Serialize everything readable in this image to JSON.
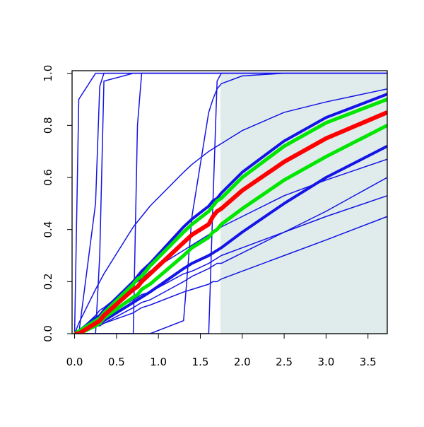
{
  "chart_data": {
    "type": "line",
    "xlim": [
      -0.03,
      3.73
    ],
    "ylim": [
      0,
      1.01
    ],
    "xticks": [
      {
        "value": 0,
        "label": "0.0"
      },
      0.5,
      {
        "value": 1,
        "label": "1.0"
      },
      1.5,
      {
        "value": 2,
        "label": "2.0"
      },
      2.5,
      {
        "value": 3,
        "label": "3.0"
      },
      3.5
    ],
    "yticks": [
      {
        "value": 0,
        "label": "0.0"
      },
      0.2,
      0.4,
      0.6,
      0.8,
      {
        "value": 1,
        "label": "1.0"
      }
    ],
    "shaded_region": {
      "x": [
        1.74,
        3.73
      ],
      "y": [
        0,
        1
      ],
      "color": "#e0eceb"
    },
    "x": [
      0,
      0.05,
      0.25,
      0.3,
      0.35,
      0.7,
      0.75,
      0.8,
      0.9,
      1.3,
      1.4,
      1.6,
      1.65,
      1.7,
      1.75,
      2.0,
      2.5,
      3.0,
      3.73
    ],
    "series": [
      {
        "color": "#1414e6",
        "width": 1.5,
        "values": [
          0,
          0.9,
          1,
          1,
          1,
          1,
          1,
          1,
          1,
          1,
          1,
          1,
          1,
          1,
          1,
          1,
          1,
          1,
          1
        ]
      },
      {
        "color": "#1414e6",
        "width": 1.5,
        "values": [
          0,
          0,
          0.5,
          0.95,
          1,
          1,
          1,
          1,
          1,
          1,
          1,
          1,
          1,
          1,
          1,
          1,
          1,
          1,
          1
        ]
      },
      {
        "color": "#1414e6",
        "width": 1.5,
        "values": [
          0,
          0,
          0,
          0.3,
          0.97,
          1,
          1,
          1,
          1,
          1,
          1,
          1,
          1,
          1,
          1,
          1,
          1,
          1,
          1
        ]
      },
      {
        "color": "#1414e6",
        "width": 1.5,
        "values": [
          0,
          0,
          0,
          0,
          0,
          0,
          0.8,
          1,
          1,
          1,
          1,
          1,
          1,
          1,
          1,
          1,
          1,
          1,
          1
        ]
      },
      {
        "color": "#1414e6",
        "width": 1.5,
        "values": [
          0,
          0,
          0,
          0,
          0,
          0,
          0,
          0,
          0,
          0.05,
          0.45,
          0.85,
          0.9,
          0.94,
          0.96,
          0.99,
          1,
          1,
          1
        ]
      },
      {
        "color": "#1414e6",
        "width": 1.5,
        "values": [
          0,
          0,
          0,
          0,
          0,
          0,
          0,
          0,
          0,
          0,
          0,
          0,
          0.5,
          0.97,
          1,
          1,
          1,
          1,
          1
        ]
      },
      {
        "color": "#1414e6",
        "width": 1.5,
        "values": [
          0,
          0.04,
          0.17,
          0.2,
          0.23,
          0.41,
          0.43,
          0.45,
          0.49,
          0.62,
          0.65,
          0.7,
          0.71,
          0.72,
          0.73,
          0.78,
          0.85,
          0.89,
          0.94
        ]
      },
      {
        "color": "#1414e6",
        "width": 4,
        "values": [
          0,
          0.01,
          0.06,
          0.07,
          0.09,
          0.2,
          0.22,
          0.24,
          0.27,
          0.41,
          0.44,
          0.49,
          0.51,
          0.52,
          0.54,
          0.62,
          0.74,
          0.83,
          0.92
        ]
      },
      {
        "color": "#1414e6",
        "width": 4,
        "values": [
          0,
          0,
          0.03,
          0.04,
          0.05,
          0.12,
          0.13,
          0.14,
          0.16,
          0.25,
          0.27,
          0.3,
          0.31,
          0.32,
          0.33,
          0.39,
          0.5,
          0.6,
          0.72
        ]
      },
      {
        "color": "#1414e6",
        "width": 1.5,
        "values": [
          0,
          0.01,
          0.07,
          0.09,
          0.1,
          0.19,
          0.2,
          0.21,
          0.24,
          0.32,
          0.34,
          0.38,
          0.39,
          0.4,
          0.41,
          0.45,
          0.53,
          0.59,
          0.67
        ]
      },
      {
        "color": "#1414e6",
        "width": 1.5,
        "values": [
          0,
          0.01,
          0.05,
          0.06,
          0.07,
          0.13,
          0.14,
          0.15,
          0.16,
          0.23,
          0.24,
          0.27,
          0.28,
          0.29,
          0.3,
          0.33,
          0.39,
          0.45,
          0.53
        ]
      },
      {
        "color": "#1414e6",
        "width": 1.5,
        "values": [
          0,
          0,
          0.03,
          0.03,
          0.04,
          0.1,
          0.11,
          0.12,
          0.13,
          0.2,
          0.22,
          0.25,
          0.26,
          0.27,
          0.27,
          0.31,
          0.39,
          0.47,
          0.6
        ]
      },
      {
        "color": "#1414e6",
        "width": 1.5,
        "values": [
          0,
          0.01,
          0.03,
          0.04,
          0.04,
          0.08,
          0.09,
          0.1,
          0.11,
          0.16,
          0.17,
          0.19,
          0.2,
          0.2,
          0.21,
          0.24,
          0.3,
          0.36,
          0.45
        ]
      },
      {
        "color": "#00e600",
        "width": 5,
        "values": [
          0,
          0.01,
          0.05,
          0.06,
          0.08,
          0.19,
          0.21,
          0.22,
          0.26,
          0.39,
          0.42,
          0.47,
          0.49,
          0.51,
          0.52,
          0.6,
          0.72,
          0.81,
          0.9
        ]
      },
      {
        "color": "#00e600",
        "width": 5,
        "values": [
          0,
          0,
          0.03,
          0.04,
          0.06,
          0.14,
          0.15,
          0.17,
          0.19,
          0.3,
          0.33,
          0.37,
          0.39,
          0.4,
          0.42,
          0.48,
          0.59,
          0.68,
          0.8
        ]
      },
      {
        "color": "#ff0000",
        "width": 6,
        "values": [
          0,
          0,
          0.04,
          0.05,
          0.07,
          0.17,
          0.18,
          0.2,
          0.23,
          0.35,
          0.38,
          0.42,
          0.45,
          0.47,
          0.48,
          0.55,
          0.66,
          0.75,
          0.85
        ]
      }
    ]
  }
}
